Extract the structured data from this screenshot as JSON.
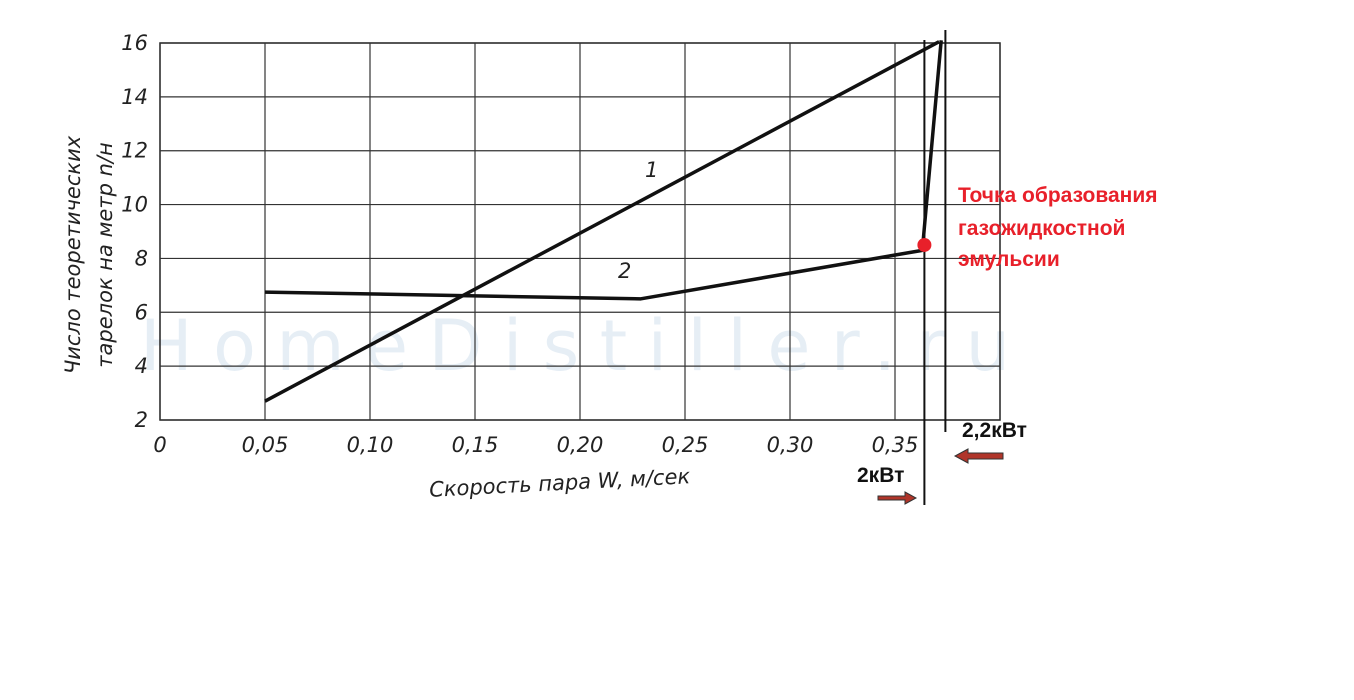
{
  "chart_data": {
    "type": "line",
    "x_label": "Скорость пара W, м/сек",
    "y_label": [
      "Число теоретических",
      "тарелок на метр n/н"
    ],
    "watermark": "HomeDistiller.ru",
    "xlim": [
      0,
      0.4
    ],
    "ylim": [
      2,
      16
    ],
    "xticks": [
      0,
      {
        "value": 0.05,
        "label": "0,05"
      },
      {
        "value": 0.1,
        "label": "0,10"
      },
      {
        "value": 0.15,
        "label": "0,15"
      },
      {
        "value": 0.2,
        "label": "0,20"
      },
      {
        "value": 0.25,
        "label": "0,25"
      },
      {
        "value": 0.3,
        "label": "0,30"
      },
      {
        "value": 0.35,
        "label": "0,35"
      }
    ],
    "yticks": [
      2,
      4,
      6,
      8,
      10,
      12,
      14,
      16
    ],
    "grid": true,
    "series": [
      {
        "name": "1",
        "color": "#111111",
        "x": [
          0.05,
          0.371
        ],
        "values": [
          2.7,
          16.05
        ]
      },
      {
        "name": "2",
        "color": "#111111",
        "x": [
          0.05,
          0.229,
          0.363,
          0.372
        ],
        "values": [
          6.75,
          6.5,
          8.3,
          16.1
        ]
      }
    ],
    "point": {
      "x": 0.364,
      "y": 8.5,
      "color": "#e8202a"
    },
    "annotation": [
      "Точка образования",
      "газожидкостной",
      "эмульсии"
    ],
    "markers": [
      {
        "x": 0.364,
        "label": "2кВт"
      },
      {
        "x": 0.374,
        "label": "2,2кВт"
      }
    ]
  }
}
